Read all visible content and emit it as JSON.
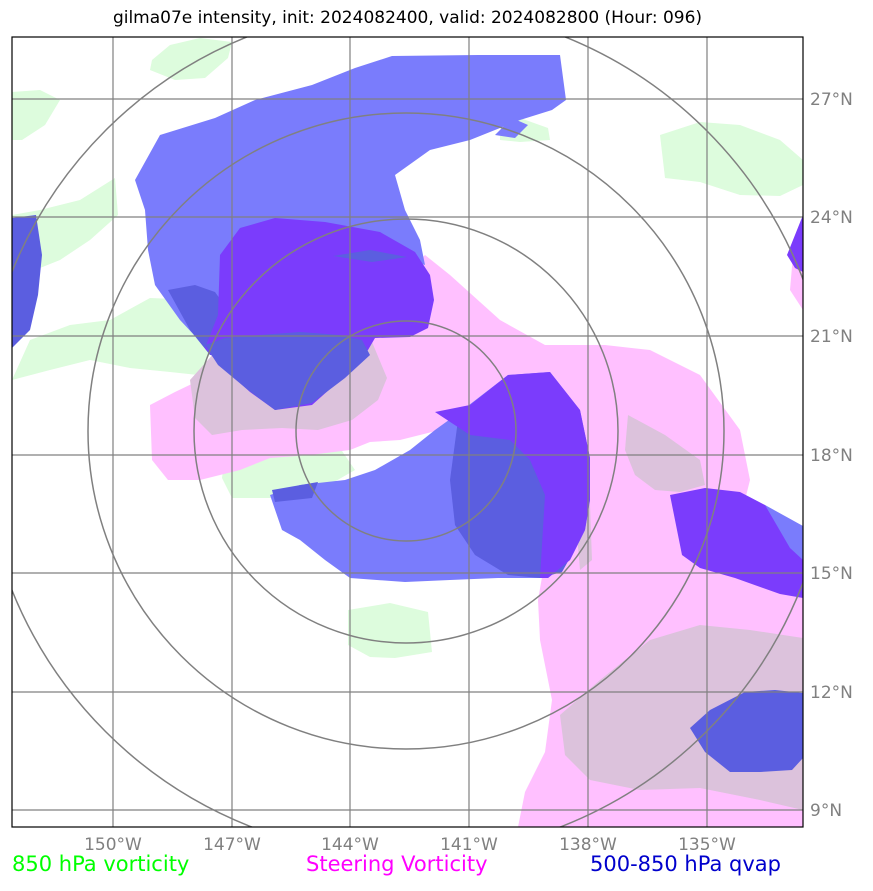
{
  "title": "gilma07e intensity, init: 2024082400, valid: 2024082800 (Hour: 096)",
  "lat_labels": [
    "27°N",
    "24°N",
    "21°N",
    "18°N",
    "15°N",
    "12°N",
    "9°N"
  ],
  "lon_labels": [
    "150°W",
    "147°W",
    "144°W",
    "141°W",
    "138°W",
    "135°W"
  ],
  "legend": [
    {
      "label": "850 hPa vorticity",
      "color": "#00ff00"
    },
    {
      "label": "Steering Vorticity",
      "color": "#ff00ff"
    },
    {
      "label": "500-850 hPa qvap",
      "color": "#0000cc"
    }
  ],
  "colors": {
    "vorticity_850": "#ddfcdd",
    "steering_light": "#ffc0ff",
    "steering_dark": "#dcc2dc",
    "qvap_light": "#7a7cfc",
    "qvap_mid": "#5b5ee0",
    "qvap_dark": "#7b3cfc",
    "grid": "#808080",
    "range_rings": "#808080"
  }
}
